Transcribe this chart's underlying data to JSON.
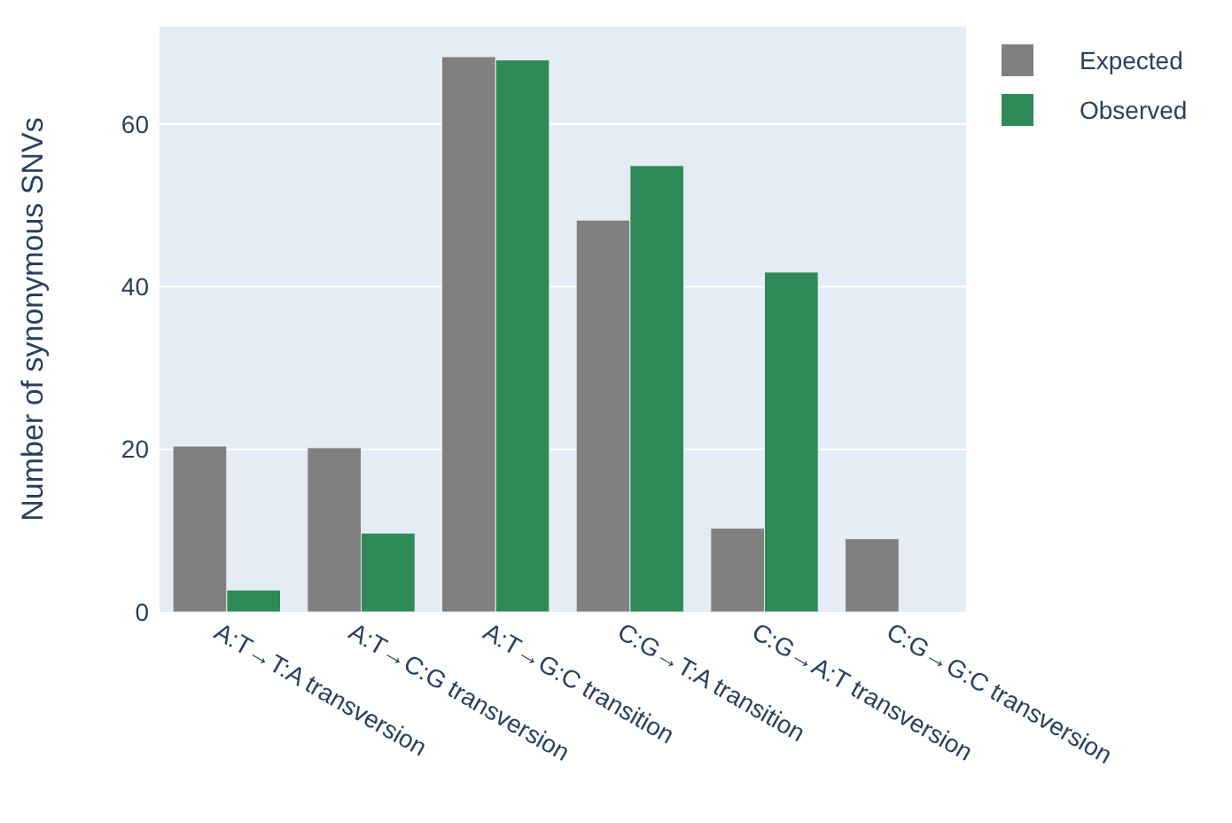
{
  "chart_data": {
    "type": "bar",
    "ylabel": "Number of synonymous SNVs",
    "categories": [
      "A:T→T:A transversion",
      "A:T→C:G transversion",
      "A:T→G:C transition",
      "C:G→T:A transition",
      "C:G→A:T transversion",
      "C:G→G:C transversion"
    ],
    "series": [
      {
        "name": "Expected",
        "color": "#808080",
        "values": [
          20.4,
          20.2,
          68.3,
          48.2,
          10.3,
          9.0
        ]
      },
      {
        "name": "Observed",
        "color": "#2e8b57",
        "values": [
          2.7,
          9.7,
          67.9,
          54.9,
          41.8,
          0
        ]
      }
    ],
    "ylim": [
      0,
      72
    ],
    "yticks": [
      0,
      20,
      40,
      60
    ],
    "grid": "y",
    "legend": "top right"
  }
}
